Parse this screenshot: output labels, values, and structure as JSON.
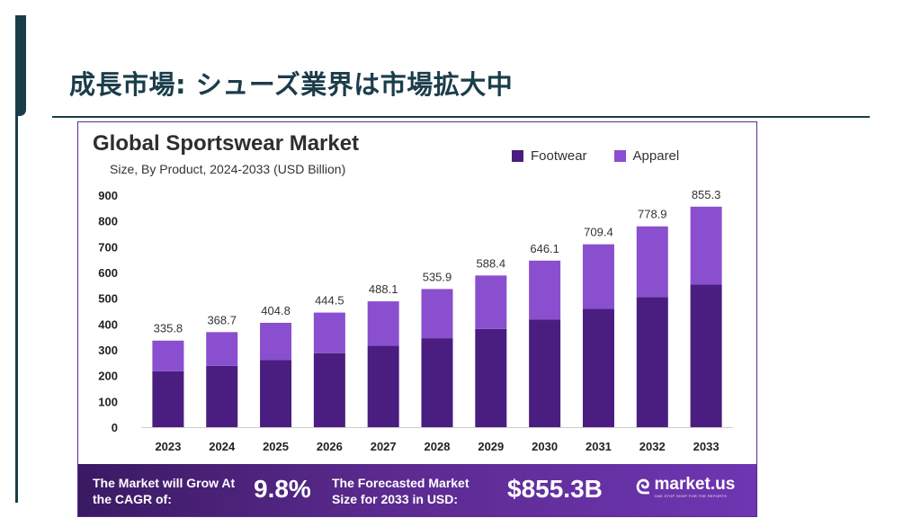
{
  "slide": {
    "title": "成長市場: シューズ業界は市場拡大中"
  },
  "colors": {
    "accent": "#1b3d4a",
    "footwear": "#4a1d80",
    "apparel": "#8a4fcf",
    "footer": "#5b2a8f"
  },
  "chart_data": {
    "type": "bar",
    "stacked": true,
    "title": "Global Sportswear Market",
    "subtitle": "Size, By Product, 2024-2033 (USD Billion)",
    "categories": [
      "2023",
      "2024",
      "2025",
      "2026",
      "2027",
      "2028",
      "2029",
      "2030",
      "2031",
      "2032",
      "2033"
    ],
    "series": [
      {
        "name": "Footwear",
        "values": [
          217,
          238,
          260,
          287,
          316,
          345,
          381,
          418,
          459,
          505,
          554
        ]
      },
      {
        "name": "Apparel",
        "values": [
          118.8,
          130.7,
          144.8,
          157.5,
          172.1,
          190.9,
          207.4,
          228.1,
          250.4,
          273.9,
          301.3
        ]
      }
    ],
    "totals_labels": [
      "335.8",
      "368.7",
      "404.8",
      "444.5",
      "488.1",
      "535.9",
      "588.4",
      "646.1",
      "709.4",
      "778.9",
      "855.3"
    ],
    "totals": [
      335.8,
      368.7,
      404.8,
      444.5,
      488.1,
      535.9,
      588.4,
      646.1,
      709.4,
      778.9,
      855.3
    ],
    "yticks": [
      "0",
      "100",
      "200",
      "300",
      "400",
      "500",
      "600",
      "700",
      "800",
      "900"
    ],
    "ylim": [
      0,
      900
    ],
    "legend": "top-right",
    "grid": false
  },
  "footer": {
    "cagr_text": "The Market will Grow At the CAGR of:",
    "cagr_value": "9.8%",
    "forecast_text": "The Forecasted Market Size for 2033 in USD:",
    "forecast_value": "$855.3B",
    "logo_text": "market.us",
    "logo_tagline": "ONE STOP SHOP FOR THE REPORTS"
  }
}
